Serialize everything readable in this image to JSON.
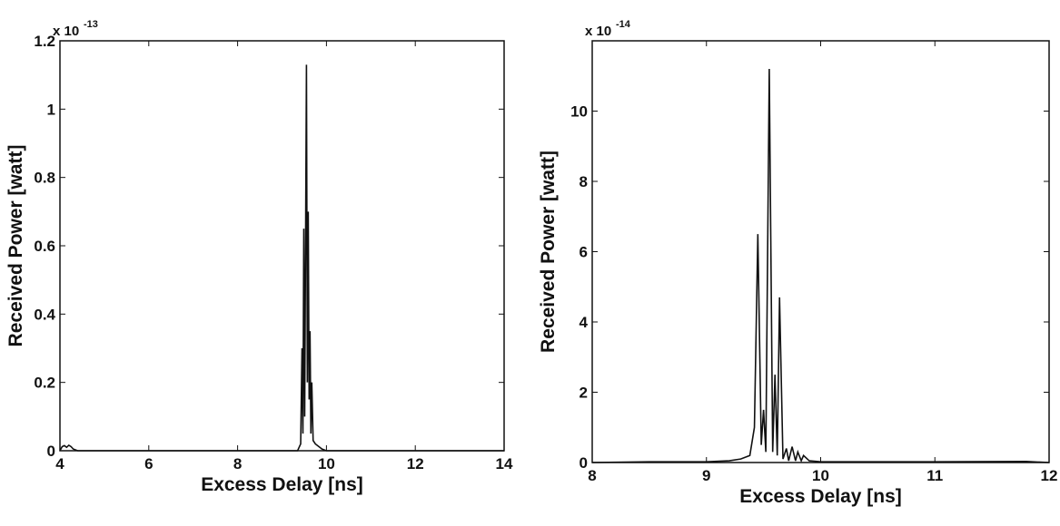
{
  "chart_data": [
    {
      "type": "line",
      "xlabel": "Excess Delay [ns]",
      "ylabel": "Received Power [watt]",
      "scale_label": "x 10",
      "scale_exponent": "-13",
      "xlim": [
        4,
        14
      ],
      "ylim": [
        0,
        1.2
      ],
      "xticks": [
        4,
        6,
        8,
        10,
        12,
        14
      ],
      "yticks": [
        0,
        0.2,
        0.4,
        0.6,
        0.8,
        1,
        1.2
      ],
      "color": "#111111",
      "x": [
        4.0,
        4.05,
        4.1,
        4.15,
        4.2,
        4.25,
        4.3,
        4.4,
        6,
        8,
        9.35,
        9.42,
        9.45,
        9.47,
        9.49,
        9.51,
        9.53,
        9.55,
        9.57,
        9.59,
        9.61,
        9.63,
        9.65,
        9.67,
        9.7,
        9.75,
        9.8,
        9.85,
        9.9,
        10,
        14
      ],
      "values": [
        0,
        0.012,
        0.015,
        0.01,
        0.016,
        0.012,
        0.005,
        0,
        0,
        0,
        0,
        0.02,
        0.3,
        0.05,
        0.65,
        0.1,
        0.6,
        1.13,
        0.2,
        0.7,
        0.15,
        0.35,
        0.05,
        0.2,
        0.03,
        0.02,
        0.015,
        0.01,
        0.005,
        0,
        0
      ]
    },
    {
      "type": "line",
      "xlabel": "Excess Delay [ns]",
      "ylabel": "Received Power [watt]",
      "scale_label": "x 10",
      "scale_exponent": "-14",
      "xlim": [
        8,
        12
      ],
      "ylim": [
        0,
        12
      ],
      "xticks": [
        8,
        9,
        10,
        11,
        12
      ],
      "yticks": [
        0,
        2,
        4,
        6,
        8,
        10
      ],
      "color": "#111111",
      "x": [
        8,
        8.5,
        9,
        9.2,
        9.3,
        9.38,
        9.42,
        9.45,
        9.48,
        9.5,
        9.52,
        9.55,
        9.58,
        9.6,
        9.62,
        9.64,
        9.67,
        9.7,
        9.72,
        9.75,
        9.78,
        9.8,
        9.83,
        9.85,
        9.9,
        10,
        11,
        11.8,
        12
      ],
      "values": [
        0,
        0.02,
        0.02,
        0.05,
        0.1,
        0.2,
        1,
        6.5,
        0.5,
        1.5,
        0.3,
        11.2,
        0.3,
        2.5,
        0.2,
        4.7,
        0.1,
        0.4,
        0.05,
        0.45,
        0.05,
        0.3,
        0.05,
        0.2,
        0.05,
        0.02,
        0.02,
        0.03,
        0
      ]
    }
  ]
}
